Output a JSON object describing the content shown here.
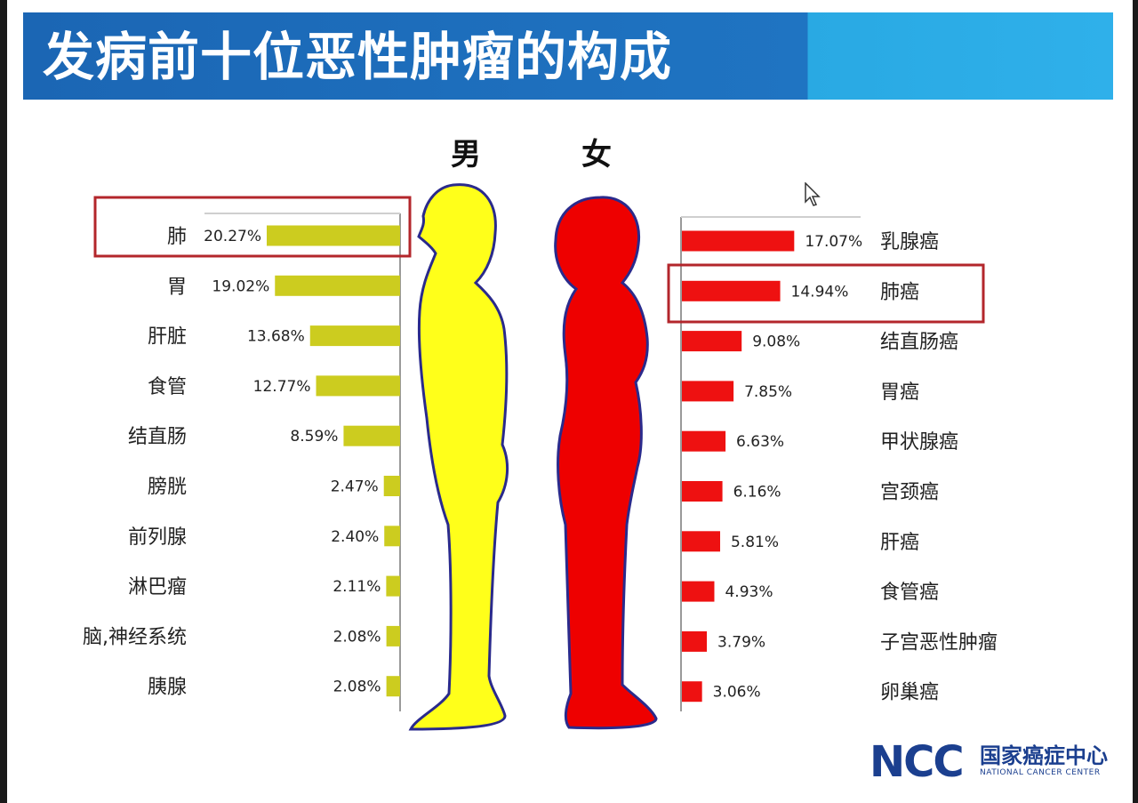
{
  "slide": {
    "title": "发病前十位恶性肿瘤的构成",
    "gender_male": "男",
    "gender_female": "女",
    "logo_mark": "NCC",
    "logo_name_cn": "国家癌症中心",
    "logo_name_en": "NATIONAL CANCER CENTER"
  },
  "colors": {
    "header": "#1f74c2",
    "header_accent": "#2fb0ea",
    "male_bar": "#cccc1f",
    "male_figure": "#ffff1a",
    "female_bar": "#ee1111",
    "female_figure": "#ee0000",
    "figure_outline": "#2a2a8c",
    "highlight_box": "#b3262b"
  },
  "chart_data": [
    {
      "type": "bar",
      "orientation": "horizontal",
      "group": "男",
      "categories": [
        "肺",
        "胃",
        "肝脏",
        "食管",
        "结直肠",
        "膀胱",
        "前列腺",
        "淋巴瘤",
        "脑,神经系统",
        "胰腺"
      ],
      "values": [
        20.27,
        19.02,
        13.68,
        12.77,
        8.59,
        2.47,
        2.4,
        2.11,
        2.08,
        2.08
      ],
      "value_labels": [
        "20.27%",
        "19.02%",
        "13.68%",
        "12.77%",
        "8.59%",
        "2.47%",
        "2.40%",
        "2.11%",
        "2.08%",
        "2.08%"
      ],
      "unit": "%",
      "highlighted": "肺"
    },
    {
      "type": "bar",
      "orientation": "horizontal",
      "group": "女",
      "categories": [
        "乳腺癌",
        "肺癌",
        "结直肠癌",
        "胃癌",
        "甲状腺癌",
        "宫颈癌",
        "肝癌",
        "食管癌",
        "子宫恶性肿瘤",
        "卵巢癌"
      ],
      "values": [
        17.07,
        14.94,
        9.08,
        7.85,
        6.63,
        6.16,
        5.81,
        4.93,
        3.79,
        3.06
      ],
      "value_labels": [
        "17.07%",
        "14.94%",
        "9.08%",
        "7.85%",
        "6.63%",
        "6.16%",
        "5.81%",
        "4.93%",
        "3.79%",
        "3.06%"
      ],
      "unit": "%",
      "highlighted": "肺癌"
    }
  ]
}
